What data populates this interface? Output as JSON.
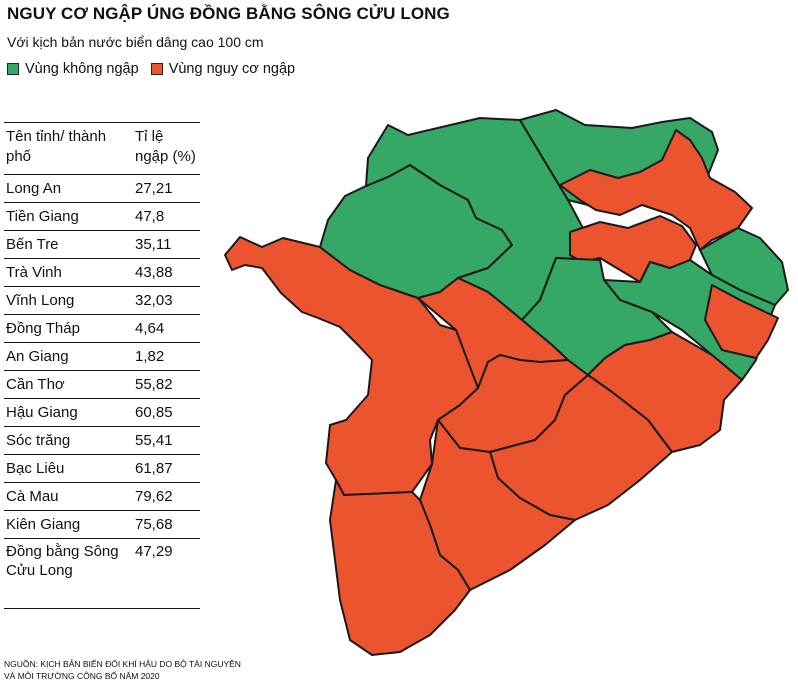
{
  "title": "NGUY CƠ NGẬP ÚNG ĐỒNG BẰNG SÔNG CỬU LONG",
  "subtitle": "Với kịch bản nước biển dâng cao 100 cm",
  "colors": {
    "safe": "#35a865",
    "risk": "#ec5430"
  },
  "legend": [
    {
      "label": "Vùng không ngập",
      "color": "#35a865"
    },
    {
      "label": "Vùng nguy cơ ngập",
      "color": "#ec5430"
    }
  ],
  "table": {
    "header": {
      "name": "Tên tỉnh/ thành phố",
      "value": "Tỉ lệ ngập (%)"
    },
    "rows": [
      {
        "name": "Long An",
        "value": "27,21"
      },
      {
        "name": "Tiền Giang",
        "value": "47,8"
      },
      {
        "name": "Bến Tre",
        "value": "35,11"
      },
      {
        "name": "Trà Vinh",
        "value": "43,88"
      },
      {
        "name": "Vĩnh Long",
        "value": "32,03"
      },
      {
        "name": "Đồng Tháp",
        "value": "4,64"
      },
      {
        "name": "An Giang",
        "value": "1,82"
      },
      {
        "name": "Cần Thơ",
        "value": "55,82"
      },
      {
        "name": "Hậu Giang",
        "value": "60,85"
      },
      {
        "name": "Sóc trăng",
        "value": "55,41"
      },
      {
        "name": "Bạc Liêu",
        "value": "61,87"
      },
      {
        "name": "Cà Mau",
        "value": "79,62"
      },
      {
        "name": "Kiên Giang",
        "value": "75,68"
      },
      {
        "name": "Đồng bằng Sông Cửu Long",
        "value": "47,29"
      }
    ]
  },
  "source": "Nguồn: Kịch bản biến đổi khí hậu do Bộ Tài nguyên và Môi trường công bố năm 2020"
}
